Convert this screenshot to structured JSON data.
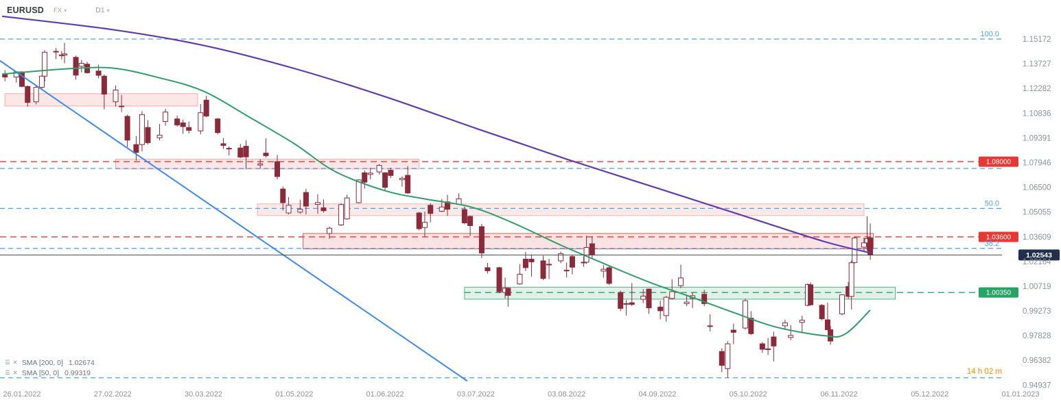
{
  "header": {
    "symbol": "EURUSD",
    "market": "FX",
    "timeframe": "D1"
  },
  "legend": {
    "sma200": {
      "label": "SMA  [200,  0]",
      "value": "1.02674"
    },
    "sma50": {
      "label": "SMA  [50,  0]",
      "value": "0.99319"
    }
  },
  "countdown": "14 h 02 m",
  "chart_data": {
    "type": "candlestick",
    "symbol": "EURUSD",
    "timeframe": "D1",
    "y_axis": {
      "max": 1.17454,
      "min": 0.9503,
      "ticks": [
        "1.15172",
        "1.13727",
        "1.12282",
        "1.10836",
        "1.09391",
        "1.07946",
        "1.06500",
        "1.05055",
        "1.03609",
        "1.02164",
        "1.00719",
        "0.99273",
        "0.97828",
        "0.96382",
        "0.94937"
      ]
    },
    "x_axis": {
      "ticks": [
        "26.01.2022",
        "27.02.2022",
        "30.03.2022",
        "01.05.2022",
        "01.06.2022",
        "03.07.2022",
        "03.08.2022",
        "04.09.2022",
        "05.10.2022",
        "06.11.2022",
        "05.12.2022",
        "01.01.2023"
      ]
    },
    "current_price": {
      "value": 1.02543,
      "label": "1.02543",
      "line_color": "#41474f",
      "badge_color": "#20304c"
    },
    "fib_color": "#45a3f7",
    "fib_levels": [
      {
        "value": 1.15172,
        "label": "100.0"
      },
      {
        "value": 1.07603,
        "label": ""
      },
      {
        "value": 1.05266,
        "label": "50.0"
      },
      {
        "value": 1.02927,
        "label": "38.2"
      },
      {
        "value": 0.95359,
        "label": ""
      }
    ],
    "levels": [
      {
        "value": 1.08,
        "label": "1.08000",
        "color": "#e53935",
        "from": null
      },
      {
        "value": 1.036,
        "label": "1.03600",
        "color": "#e53935",
        "from": null
      },
      {
        "value": 1.0035,
        "label": "1.00350",
        "color": "#27a465",
        "from": "29.06.2022"
      }
    ],
    "zones": [
      {
        "from": "20.01.2022",
        "to": "28.03.2022",
        "top": 1.1198,
        "bottom": 1.1125,
        "fill": "rgba(239,83,80,0.14)",
        "stroke": "rgba(239,83,80,0.45)"
      },
      {
        "from": "28.02.2022",
        "to": "13.06.2022",
        "top": 1.0815,
        "bottom": 1.0757,
        "fill": "rgba(239,83,80,0.14)",
        "stroke": "rgba(239,83,80,0.45)"
      },
      {
        "from": "18.04.2022",
        "to": "14.11.2022",
        "top": 1.0553,
        "bottom": 1.0485,
        "fill": "rgba(239,83,80,0.13)",
        "stroke": "rgba(239,83,80,0.40)"
      },
      {
        "from": "04.05.2022",
        "to": "17.11.2022",
        "top": 1.038,
        "bottom": 1.029,
        "fill": "rgba(239,83,80,0.16)",
        "stroke": "rgba(229,57,53,0.85)"
      },
      {
        "from": "29.06.2022",
        "to": "24.11.2022",
        "top": 1.0066,
        "bottom": 0.9996,
        "fill": "rgba(39,164,101,0.15)",
        "stroke": "rgba(39,164,101,0.8)"
      }
    ],
    "trendline": {
      "color": "#3c8af0",
      "points": [
        [
          "18.01.2022",
          1.1393
        ],
        [
          "30.06.2022",
          0.9517
        ]
      ]
    },
    "sma200": {
      "name": "SMA 200",
      "color": "#5f3cae",
      "points": [
        [
          "19.01.2022",
          1.165
        ],
        [
          "27.02.2022",
          1.1572
        ],
        [
          "30.03.2022",
          1.148
        ],
        [
          "01.05.2022",
          1.1345
        ],
        [
          "01.06.2022",
          1.118
        ],
        [
          "03.07.2022",
          1.0995
        ],
        [
          "03.08.2022",
          1.0815
        ],
        [
          "04.09.2022",
          1.0645
        ],
        [
          "05.10.2022",
          1.0475
        ],
        [
          "01.11.2022",
          1.0332
        ],
        [
          "16.11.2022",
          1.0267
        ]
      ]
    },
    "sma50": {
      "name": "SMA 50",
      "color": "#2f9e68",
      "points": [
        [
          "19.01.2022",
          1.1312
        ],
        [
          "10.02.2022",
          1.1342
        ],
        [
          "27.02.2022",
          1.1347
        ],
        [
          "15.03.2022",
          1.129
        ],
        [
          "30.03.2022",
          1.1212
        ],
        [
          "15.04.2022",
          1.1062
        ],
        [
          "01.05.2022",
          1.0905
        ],
        [
          "15.05.2022",
          1.0742
        ],
        [
          "01.06.2022",
          1.063
        ],
        [
          "15.06.2022",
          1.0582
        ],
        [
          "01.07.2022",
          1.0536
        ],
        [
          "15.07.2022",
          1.0447
        ],
        [
          "01.08.2022",
          1.0312
        ],
        [
          "15.08.2022",
          1.0212
        ],
        [
          "01.09.2022",
          1.0096
        ],
        [
          "15.09.2022",
          1.0012
        ],
        [
          "01.10.2022",
          0.9912
        ],
        [
          "15.10.2022",
          0.9832
        ],
        [
          "01.11.2022",
          0.9782
        ],
        [
          "08.11.2022",
          0.9792
        ],
        [
          "16.11.2022",
          0.9932
        ]
      ]
    },
    "candle_colors": {
      "up": "#ffffff",
      "down": "#8a2a3a",
      "border": "#8a2a3a"
    },
    "candles": [
      [
        "20.01.2022",
        1.1313,
        1.1335,
        1.127,
        1.1295
      ],
      [
        "24.01.2022",
        1.1295,
        1.133,
        1.1262,
        1.1325
      ],
      [
        "26.01.2022",
        1.1325,
        1.133,
        1.1235,
        1.124
      ],
      [
        "28.01.2022",
        1.124,
        1.1245,
        1.1121,
        1.1146
      ],
      [
        "31.01.2022",
        1.115,
        1.1248,
        1.1135,
        1.1235
      ],
      [
        "02.02.2022",
        1.1235,
        1.1305,
        1.1222,
        1.13
      ],
      [
        "03.02.2022",
        1.13,
        1.1452,
        1.1268,
        1.144
      ],
      [
        "07.02.2022",
        1.1445,
        1.1465,
        1.14,
        1.1443
      ],
      [
        "09.02.2022",
        1.142,
        1.1448,
        1.1398,
        1.1424
      ],
      [
        "10.02.2022",
        1.1424,
        1.1495,
        1.1375,
        1.143
      ],
      [
        "14.02.2022",
        1.141,
        1.142,
        1.128,
        1.1306
      ],
      [
        "16.02.2022",
        1.1358,
        1.1395,
        1.1323,
        1.1375
      ],
      [
        "18.02.2022",
        1.137,
        1.1384,
        1.1315,
        1.132
      ],
      [
        "22.02.2022",
        1.133,
        1.1367,
        1.1288,
        1.1305
      ],
      [
        "24.02.2022",
        1.13,
        1.131,
        1.1106,
        1.1195
      ],
      [
        "28.02.2022",
        1.115,
        1.1246,
        1.1122,
        1.1219
      ],
      [
        "02.03.2022",
        1.1125,
        1.119,
        1.109,
        1.1125
      ],
      [
        "04.03.2022",
        1.1065,
        1.1075,
        1.0886,
        1.0926
      ],
      [
        "07.03.2022",
        1.09,
        1.095,
        1.0806,
        1.0854
      ],
      [
        "09.03.2022",
        1.09,
        1.1095,
        1.086,
        1.1075
      ],
      [
        "11.03.2022",
        1.1,
        1.1043,
        1.0901,
        1.0911
      ],
      [
        "15.03.2022",
        1.094,
        1.102,
        1.0925,
        1.0955
      ],
      [
        "17.03.2022",
        1.1035,
        1.1109,
        1.101,
        1.109
      ],
      [
        "21.03.2022",
        1.105,
        1.1069,
        1.1005,
        1.1015
      ],
      [
        "23.03.2022",
        1.1027,
        1.1045,
        1.0963,
        1.1005
      ],
      [
        "25.03.2022",
        1.1,
        1.1035,
        1.0965,
        1.0983
      ],
      [
        "29.03.2022",
        1.098,
        1.1137,
        1.096,
        1.1086
      ],
      [
        "31.03.2022",
        1.116,
        1.1185,
        1.106,
        1.1067
      ],
      [
        "04.04.2022",
        1.105,
        1.1055,
        1.096,
        1.097
      ],
      [
        "06.04.2022",
        1.0905,
        1.0938,
        1.0874,
        1.0895
      ],
      [
        "08.04.2022",
        1.0878,
        1.089,
        1.0836,
        1.0876
      ],
      [
        "12.04.2022",
        1.088,
        1.0904,
        1.0821,
        1.0827
      ],
      [
        "14.04.2022",
        1.089,
        1.0925,
        1.0758,
        1.0828
      ],
      [
        "19.04.2022",
        1.078,
        1.0815,
        1.0761,
        1.0787
      ],
      [
        "21.04.2022",
        1.085,
        1.0936,
        1.0824,
        1.0835
      ],
      [
        "25.04.2022",
        1.08,
        1.084,
        1.0697,
        1.0713
      ],
      [
        "27.04.2022",
        1.064,
        1.0655,
        1.0514,
        1.056
      ],
      [
        "29.04.2022",
        1.05,
        1.0593,
        1.0492,
        1.0545
      ],
      [
        "03.05.2022",
        1.0505,
        1.0578,
        1.0495,
        1.0522
      ],
      [
        "05.05.2022",
        1.062,
        1.0642,
        1.0492,
        1.054
      ],
      [
        "09.05.2022",
        1.055,
        1.061,
        1.0495,
        1.0561
      ],
      [
        "11.05.2022",
        1.053,
        1.0579,
        1.0503,
        1.0513
      ],
      [
        "13.05.2022",
        1.038,
        1.042,
        1.0349,
        1.0411
      ],
      [
        "17.05.2022",
        1.043,
        1.0557,
        1.0424,
        1.0549
      ],
      [
        "19.05.2022",
        1.0465,
        1.0607,
        1.046,
        1.0588
      ],
      [
        "23.05.2022",
        1.056,
        1.0697,
        1.0556,
        1.0693
      ],
      [
        "25.05.2022",
        1.0735,
        1.0749,
        1.0642,
        1.068
      ],
      [
        "27.05.2022",
        1.0725,
        1.0765,
        1.0697,
        1.0733
      ],
      [
        "30.05.2022",
        1.074,
        1.0786,
        1.0725,
        1.0778
      ],
      [
        "01.06.2022",
        1.0735,
        1.0739,
        1.0627,
        1.065
      ],
      [
        "03.06.2022",
        1.075,
        1.0764,
        1.0704,
        1.0719
      ],
      [
        "07.06.2022",
        1.0695,
        1.0714,
        1.0653,
        1.0703
      ],
      [
        "09.06.2022",
        1.072,
        1.0774,
        1.0611,
        1.0617
      ],
      [
        "13.06.2022",
        1.05,
        1.0506,
        1.0398,
        1.0408
      ],
      [
        "15.06.2022",
        1.0415,
        1.0508,
        1.0359,
        1.0445
      ],
      [
        "17.06.2022",
        1.0545,
        1.0557,
        1.0445,
        1.0497
      ],
      [
        "21.06.2022",
        1.051,
        1.0582,
        1.0505,
        1.0535
      ],
      [
        "23.06.2022",
        1.0565,
        1.0606,
        1.0483,
        1.0522
      ],
      [
        "27.06.2022",
        1.055,
        1.0615,
        1.0546,
        1.0583
      ],
      [
        "29.06.2022",
        1.052,
        1.0536,
        1.0434,
        1.0442
      ],
      [
        "01.07.2022",
        1.048,
        1.0485,
        1.0365,
        1.0426
      ],
      [
        "05.07.2022",
        1.042,
        1.0436,
        1.0236,
        1.0266
      ],
      [
        "07.07.2022",
        1.018,
        1.0208,
        1.0145,
        1.0162
      ],
      [
        "11.07.2022",
        1.018,
        1.0185,
        1.0032,
        1.004
      ],
      [
        "13.07.2022",
        1.0035,
        1.0122,
        1.0,
        1.006
      ],
      [
        "14.07.2022",
        1.006,
        1.0065,
        0.9952,
        1.0018
      ],
      [
        "18.07.2022",
        1.0085,
        1.0201,
        1.008,
        1.0142
      ],
      [
        "20.07.2022",
        1.023,
        1.0273,
        1.016,
        1.018
      ],
      [
        "22.07.2022",
        1.023,
        1.0257,
        1.0128,
        1.0214
      ],
      [
        "26.07.2022",
        1.022,
        1.025,
        1.0108,
        1.0117
      ],
      [
        "28.07.2022",
        1.02,
        1.0232,
        1.0113,
        1.0197
      ],
      [
        "01.08.2022",
        1.022,
        1.0274,
        1.0206,
        1.0262
      ],
      [
        "03.08.2022",
        1.0165,
        1.021,
        1.0123,
        1.0165
      ],
      [
        "05.08.2022",
        1.0245,
        1.0254,
        1.0141,
        1.0183
      ],
      [
        "09.08.2022",
        1.021,
        1.0247,
        1.0185,
        1.0212
      ],
      [
        "10.08.2022",
        1.0212,
        1.0368,
        1.0202,
        1.0298
      ],
      [
        "12.08.2022",
        1.032,
        1.0365,
        1.0236,
        1.0257
      ],
      [
        "16.08.2022",
        1.016,
        1.0195,
        1.0121,
        1.0171
      ],
      [
        "18.08.2022",
        1.018,
        1.0191,
        1.008,
        1.0088
      ],
      [
        "22.08.2022",
        1.0035,
        1.0046,
        0.9926,
        0.9942
      ],
      [
        "24.08.2022",
        0.997,
        0.999,
        0.99,
        0.9967
      ],
      [
        "26.08.2022",
        0.9975,
        1.009,
        0.9956,
        0.9965
      ],
      [
        "30.08.2022",
        0.9995,
        1.0055,
        0.9972,
        1.0014
      ],
      [
        "01.09.2022",
        1.0055,
        1.0058,
        0.991,
        0.9945
      ],
      [
        "05.09.2022",
        0.995,
        0.9988,
        0.9878,
        0.9928
      ],
      [
        "07.09.2022",
        0.99,
        1.0015,
        0.9864,
        1.0007
      ],
      [
        "09.09.2022",
        1.0,
        1.0113,
        0.9993,
        1.004
      ],
      [
        "12.09.2022",
        1.0075,
        1.0198,
        1.006,
        1.012
      ],
      [
        "14.09.2022",
        0.997,
        1.0023,
        0.9955,
        0.9979
      ],
      [
        "16.09.2022",
        1.0,
        1.0036,
        0.9944,
        1.0016
      ],
      [
        "20.09.2022",
        1.0025,
        1.0051,
        0.9955,
        0.997
      ],
      [
        "22.09.2022",
        0.984,
        0.9907,
        0.9807,
        0.9836
      ],
      [
        "26.09.2022",
        0.969,
        0.9709,
        0.9569,
        0.9609
      ],
      [
        "28.09.2022",
        0.959,
        0.975,
        0.9536,
        0.9735
      ],
      [
        "30.09.2022",
        0.9815,
        0.9853,
        0.9733,
        0.9802
      ],
      [
        "04.10.2022",
        0.9827,
        0.9999,
        0.9818,
        0.9987
      ],
      [
        "06.10.2022",
        0.9885,
        0.9926,
        0.9787,
        0.9794
      ],
      [
        "10.10.2022",
        0.9735,
        0.9745,
        0.9682,
        0.9703
      ],
      [
        "12.10.2022",
        0.9705,
        0.9769,
        0.967,
        0.9704
      ],
      [
        "14.10.2022",
        0.9775,
        0.9806,
        0.9632,
        0.9722
      ],
      [
        "18.10.2022",
        0.984,
        0.9876,
        0.9816,
        0.9857
      ],
      [
        "20.10.2022",
        0.9772,
        0.9845,
        0.9756,
        0.9784
      ],
      [
        "24.10.2022",
        0.986,
        0.9899,
        0.9805,
        0.9873
      ],
      [
        "26.10.2022",
        0.996,
        1.0089,
        0.9953,
        1.0082
      ],
      [
        "27.10.2022",
        1.008,
        1.0094,
        0.9959,
        0.9963
      ],
      [
        "31.10.2022",
        0.996,
        0.9967,
        0.9872,
        0.9881
      ],
      [
        "02.11.2022",
        0.9875,
        0.9976,
        0.9814,
        0.9817
      ],
      [
        "03.11.2022",
        0.9817,
        0.984,
        0.973,
        0.9751
      ],
      [
        "07.11.2022",
        0.991,
        1.0023,
        0.9902,
        1.0021
      ],
      [
        "09.11.2022",
        1.007,
        1.0096,
        0.9998,
        1.0012
      ],
      [
        "10.11.2022",
        1.0012,
        1.0222,
        0.9936,
        1.0209
      ],
      [
        "11.11.2022",
        1.021,
        1.0365,
        1.0205,
        1.0354
      ],
      [
        "14.11.2022",
        1.03,
        1.0357,
        1.0271,
        1.0325
      ],
      [
        "15.11.2022",
        1.0325,
        1.0481,
        1.028,
        1.035
      ],
      [
        "16.11.2022",
        1.0355,
        1.0439,
        1.0227,
        1.0254
      ]
    ]
  }
}
